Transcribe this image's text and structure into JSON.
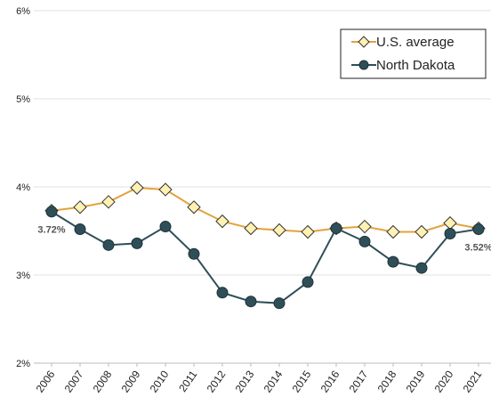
{
  "chart_data": {
    "type": "line",
    "categories": [
      "2006",
      "2007",
      "2008",
      "2009",
      "2010",
      "2011",
      "2012",
      "2013",
      "2014",
      "2015",
      "2016",
      "2017",
      "2018",
      "2019",
      "2020",
      "2021"
    ],
    "series": [
      {
        "name": "U.S. average",
        "color": "#e3a23b",
        "marker": "diamond",
        "marker_fill": "#fff1b3",
        "values": [
          3.73,
          3.77,
          3.83,
          3.99,
          3.97,
          3.77,
          3.61,
          3.53,
          3.51,
          3.49,
          3.53,
          3.55,
          3.49,
          3.49,
          3.59,
          3.53
        ]
      },
      {
        "name": "North Dakota",
        "color": "#2f4f58",
        "marker": "circle",
        "marker_fill": "#2f4f58",
        "values": [
          3.72,
          3.52,
          3.34,
          3.36,
          3.55,
          3.24,
          2.8,
          2.7,
          2.68,
          2.92,
          3.53,
          3.38,
          3.15,
          3.08,
          3.47,
          3.52
        ],
        "value_labels": [
          "3.72%",
          null,
          null,
          null,
          null,
          null,
          null,
          null,
          null,
          null,
          null,
          null,
          null,
          null,
          null,
          "3.52%"
        ]
      }
    ],
    "ylim": [
      2,
      6
    ],
    "yticks": [
      {
        "value": 2,
        "label": "2%"
      },
      {
        "value": 3,
        "label": "3%"
      },
      {
        "value": 4,
        "label": "4%"
      },
      {
        "value": 5,
        "label": "5%"
      },
      {
        "value": 6,
        "label": "6%"
      }
    ],
    "grid": true,
    "legend": "top-right"
  }
}
